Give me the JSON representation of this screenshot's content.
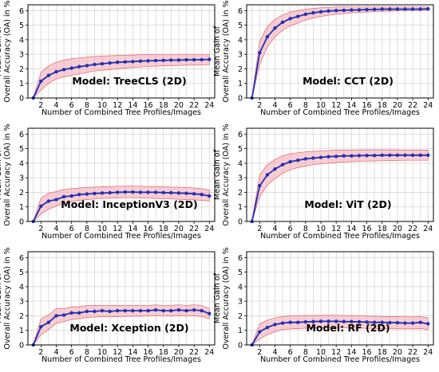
{
  "chart_data": [
    {
      "type": "line",
      "title": "",
      "annotation": "Model: TreeCLS (2D)",
      "xlabel": "Number of Combined Tree Profiles/Images",
      "ylabel": "Mean Gain of Overall Accuracy (OA) in %",
      "xlim": [
        0.3,
        24.7
      ],
      "ylim": [
        0,
        6.4
      ],
      "xticks": [
        "2",
        "4",
        "6",
        "8",
        "10",
        "12",
        "14",
        "16",
        "18",
        "20",
        "22",
        "24"
      ],
      "yticks": [
        "0",
        "1",
        "2",
        "3",
        "4",
        "5",
        "6"
      ],
      "grid": true,
      "line_color": "#1f2fb5",
      "band_color": "#f4a6ad",
      "x": [
        1,
        2,
        3,
        4,
        5,
        6,
        7,
        8,
        9,
        10,
        11,
        12,
        13,
        14,
        15,
        16,
        17,
        18,
        19,
        20,
        21,
        22,
        23,
        24
      ],
      "y": [
        0,
        1.15,
        1.55,
        1.8,
        1.95,
        2.05,
        2.15,
        2.22,
        2.3,
        2.35,
        2.4,
        2.45,
        2.48,
        2.5,
        2.53,
        2.55,
        2.57,
        2.58,
        2.6,
        2.6,
        2.62,
        2.62,
        2.63,
        2.65
      ],
      "band_lower": [
        0,
        0.55,
        1.0,
        1.3,
        1.45,
        1.55,
        1.65,
        1.75,
        1.85,
        1.9,
        1.95,
        2.0,
        2.05,
        2.1,
        2.12,
        2.15,
        2.18,
        2.2,
        2.22,
        2.23,
        2.25,
        2.26,
        2.27,
        2.28
      ],
      "band_upper": [
        0,
        1.75,
        2.2,
        2.45,
        2.6,
        2.7,
        2.75,
        2.8,
        2.85,
        2.88,
        2.9,
        2.92,
        2.94,
        2.95,
        2.97,
        2.98,
        3.0,
        3.0,
        3.0,
        3.0,
        3.0,
        3.0,
        3.0,
        3.0
      ]
    },
    {
      "type": "line",
      "title": "",
      "annotation": "Model: CCT (2D)",
      "xlabel": "Number of Combined Tree Profiles/Images",
      "ylabel": "Mean Gain of Overall Accuracy (OA) in %",
      "xlim": [
        0.3,
        24.7
      ],
      "ylim": [
        0,
        6.4
      ],
      "xticks": [
        "2",
        "4",
        "6",
        "8",
        "10",
        "12",
        "14",
        "16",
        "18",
        "20",
        "22",
        "24"
      ],
      "yticks": [
        "0",
        "1",
        "2",
        "3",
        "4",
        "5",
        "6"
      ],
      "grid": true,
      "line_color": "#1f2fb5",
      "band_color": "#f4a6ad",
      "x": [
        1,
        2,
        3,
        4,
        5,
        6,
        7,
        8,
        9,
        10,
        11,
        12,
        13,
        14,
        15,
        16,
        17,
        18,
        19,
        20,
        21,
        22,
        23,
        24
      ],
      "y": [
        0,
        3.1,
        4.2,
        4.8,
        5.2,
        5.45,
        5.6,
        5.75,
        5.85,
        5.92,
        5.97,
        6.0,
        6.02,
        6.04,
        6.05,
        6.07,
        6.08,
        6.1,
        6.1,
        6.1,
        6.1,
        6.1,
        6.1,
        6.12
      ],
      "band_lower": [
        0,
        2.3,
        3.5,
        4.2,
        4.65,
        4.95,
        5.15,
        5.35,
        5.5,
        5.6,
        5.68,
        5.75,
        5.8,
        5.85,
        5.88,
        5.9,
        5.92,
        5.95,
        5.97,
        5.98,
        6.0,
        6.0,
        6.0,
        6.02
      ],
      "band_upper": [
        0,
        3.9,
        4.9,
        5.4,
        5.7,
        5.9,
        6.0,
        6.1,
        6.15,
        6.2,
        6.22,
        6.25,
        6.25,
        6.25,
        6.25,
        6.25,
        6.25,
        6.25,
        6.25,
        6.25,
        6.25,
        6.25,
        6.25,
        6.25
      ]
    },
    {
      "type": "line",
      "title": "",
      "annotation": "Model: InceptionV3 (2D)",
      "xlabel": "Number of Combined Tree Profiles/Images",
      "ylabel": "Mean Gain of Overall Accuracy (OA) in %",
      "xlim": [
        0.3,
        24.7
      ],
      "ylim": [
        0,
        6.4
      ],
      "xticks": [
        "2",
        "4",
        "6",
        "8",
        "10",
        "12",
        "14",
        "16",
        "18",
        "20",
        "22",
        "24"
      ],
      "yticks": [
        "0",
        "1",
        "2",
        "3",
        "4",
        "5",
        "6"
      ],
      "grid": true,
      "line_color": "#1f2fb5",
      "band_color": "#f4a6ad",
      "x": [
        1,
        2,
        3,
        4,
        5,
        6,
        7,
        8,
        9,
        10,
        11,
        12,
        13,
        14,
        15,
        16,
        17,
        18,
        19,
        20,
        21,
        22,
        23,
        24
      ],
      "y": [
        0,
        1.05,
        1.4,
        1.5,
        1.7,
        1.75,
        1.85,
        1.88,
        1.92,
        1.95,
        1.97,
        2.0,
        2.02,
        2.02,
        2.0,
        2.0,
        2.0,
        1.98,
        1.97,
        1.95,
        1.93,
        1.9,
        1.85,
        1.75
      ],
      "band_lower": [
        0,
        0.5,
        0.85,
        1.05,
        1.25,
        1.35,
        1.45,
        1.5,
        1.55,
        1.58,
        1.6,
        1.62,
        1.63,
        1.63,
        1.62,
        1.6,
        1.58,
        1.56,
        1.55,
        1.52,
        1.5,
        1.48,
        1.45,
        1.4
      ],
      "band_upper": [
        0,
        1.6,
        1.95,
        2.05,
        2.2,
        2.25,
        2.3,
        2.33,
        2.36,
        2.38,
        2.4,
        2.42,
        2.43,
        2.43,
        2.42,
        2.4,
        2.4,
        2.38,
        2.36,
        2.35,
        2.33,
        2.3,
        2.25,
        2.15
      ]
    },
    {
      "type": "line",
      "title": "",
      "annotation": "Model: ViT (2D)",
      "xlabel": "Number of Combined Tree Profiles/Images",
      "ylabel": "Mean Gain of Overall Accuracy (OA) in %",
      "xlim": [
        0.3,
        24.7
      ],
      "ylim": [
        0,
        6.4
      ],
      "xticks": [
        "2",
        "4",
        "6",
        "8",
        "10",
        "12",
        "14",
        "16",
        "18",
        "20",
        "22",
        "24"
      ],
      "yticks": [
        "0",
        "1",
        "2",
        "3",
        "4",
        "5",
        "6"
      ],
      "grid": true,
      "line_color": "#1f2fb5",
      "band_color": "#f4a6ad",
      "x": [
        1,
        2,
        3,
        4,
        5,
        6,
        7,
        8,
        9,
        10,
        11,
        12,
        13,
        14,
        15,
        16,
        17,
        18,
        19,
        20,
        21,
        22,
        23,
        24
      ],
      "y": [
        0,
        2.45,
        3.2,
        3.6,
        3.9,
        4.1,
        4.2,
        4.3,
        4.35,
        4.4,
        4.45,
        4.47,
        4.5,
        4.5,
        4.52,
        4.53,
        4.53,
        4.55,
        4.55,
        4.55,
        4.55,
        4.55,
        4.55,
        4.55
      ],
      "band_lower": [
        0,
        1.7,
        2.5,
        2.95,
        3.3,
        3.55,
        3.7,
        3.8,
        3.9,
        3.95,
        4.0,
        4.05,
        4.08,
        4.1,
        4.12,
        4.14,
        4.15,
        4.17,
        4.18,
        4.19,
        4.2,
        4.2,
        4.2,
        4.2
      ],
      "band_upper": [
        0,
        3.2,
        3.9,
        4.25,
        4.5,
        4.65,
        4.72,
        4.78,
        4.82,
        4.85,
        4.87,
        4.9,
        4.9,
        4.9,
        4.92,
        4.92,
        4.92,
        4.92,
        4.92,
        4.92,
        4.9,
        4.9,
        4.9,
        4.9
      ]
    },
    {
      "type": "line",
      "title": "",
      "annotation": "Model: Xception (2D)",
      "xlabel": "Number of Combined Tree Profiles/Images",
      "ylabel": "Mean Gain of Overall Accuracy (OA) in %",
      "xlim": [
        0.3,
        24.7
      ],
      "ylim": [
        0,
        6.4
      ],
      "xticks": [
        "2",
        "4",
        "6",
        "8",
        "10",
        "12",
        "14",
        "16",
        "18",
        "20",
        "22",
        "24"
      ],
      "yticks": [
        "0",
        "1",
        "2",
        "3",
        "4",
        "5",
        "6"
      ],
      "grid": true,
      "line_color": "#1f2fb5",
      "band_color": "#f4a6ad",
      "x": [
        1,
        2,
        3,
        4,
        5,
        6,
        7,
        8,
        9,
        10,
        11,
        12,
        13,
        14,
        15,
        16,
        17,
        18,
        19,
        20,
        21,
        22,
        23,
        24
      ],
      "y": [
        0,
        1.25,
        1.55,
        2.0,
        2.05,
        2.2,
        2.2,
        2.3,
        2.3,
        2.35,
        2.3,
        2.35,
        2.35,
        2.35,
        2.35,
        2.35,
        2.4,
        2.35,
        2.35,
        2.4,
        2.35,
        2.4,
        2.35,
        2.15
      ],
      "band_lower": [
        0,
        0.7,
        1.05,
        1.5,
        1.6,
        1.75,
        1.8,
        1.88,
        1.9,
        1.95,
        1.92,
        1.95,
        1.96,
        1.97,
        1.97,
        1.98,
        2.0,
        1.98,
        1.98,
        2.0,
        1.98,
        2.0,
        1.95,
        1.8
      ],
      "band_upper": [
        0,
        1.8,
        2.05,
        2.5,
        2.5,
        2.62,
        2.62,
        2.7,
        2.7,
        2.72,
        2.7,
        2.72,
        2.72,
        2.72,
        2.72,
        2.72,
        2.75,
        2.72,
        2.72,
        2.75,
        2.72,
        2.75,
        2.72,
        2.5
      ]
    },
    {
      "type": "line",
      "title": "",
      "annotation": "Model: RF (2D)",
      "xlabel": "Number of Combined Tree Profiles/Images",
      "ylabel": "Mean Gain of Overall Accuracy (OA) in %",
      "xlim": [
        0.3,
        24.7
      ],
      "ylim": [
        0,
        6.4
      ],
      "xticks": [
        "2",
        "4",
        "6",
        "8",
        "10",
        "12",
        "14",
        "16",
        "18",
        "20",
        "22",
        "24"
      ],
      "yticks": [
        "0",
        "1",
        "2",
        "3",
        "4",
        "5",
        "6"
      ],
      "grid": true,
      "line_color": "#1f2fb5",
      "band_color": "#f4a6ad",
      "x": [
        1,
        2,
        3,
        4,
        5,
        6,
        7,
        8,
        9,
        10,
        11,
        12,
        13,
        14,
        15,
        16,
        17,
        18,
        19,
        20,
        21,
        22,
        23,
        24
      ],
      "y": [
        0,
        0.9,
        1.2,
        1.4,
        1.5,
        1.55,
        1.55,
        1.58,
        1.6,
        1.62,
        1.62,
        1.62,
        1.6,
        1.6,
        1.58,
        1.57,
        1.55,
        1.55,
        1.53,
        1.52,
        1.5,
        1.5,
        1.55,
        1.45
      ],
      "band_lower": [
        0,
        0.4,
        0.7,
        0.9,
        1.05,
        1.1,
        1.12,
        1.15,
        1.17,
        1.18,
        1.18,
        1.18,
        1.17,
        1.16,
        1.15,
        1.14,
        1.13,
        1.12,
        1.11,
        1.1,
        1.1,
        1.1,
        1.12,
        1.05
      ],
      "band_upper": [
        0,
        1.45,
        1.7,
        1.85,
        1.95,
        2.0,
        2.0,
        2.02,
        2.02,
        2.03,
        2.03,
        2.03,
        2.02,
        2.02,
        2.0,
        1.98,
        1.97,
        1.96,
        1.95,
        1.94,
        1.93,
        1.92,
        1.95,
        1.85
      ]
    }
  ]
}
